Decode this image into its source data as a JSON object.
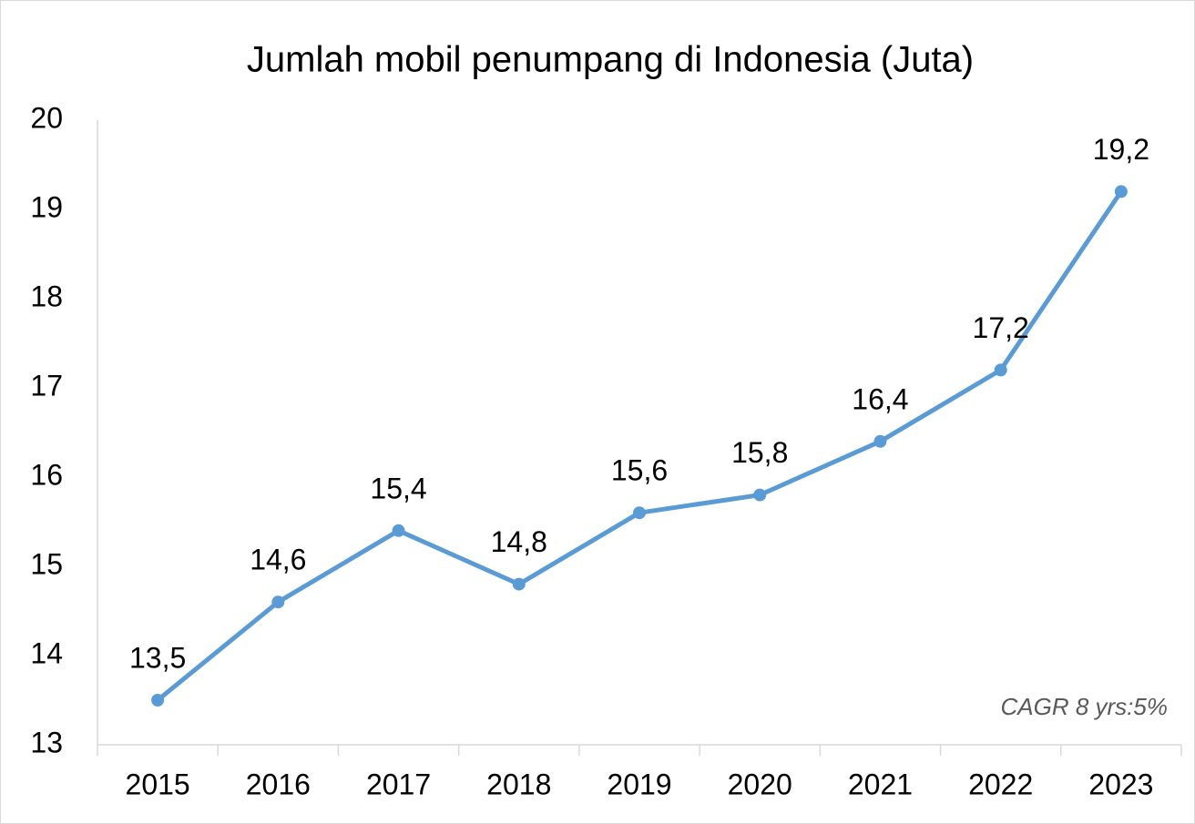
{
  "chart_data": {
    "type": "line",
    "title": "Jumlah mobil penumpang di Indonesia (Juta)",
    "categories": [
      "2015",
      "2016",
      "2017",
      "2018",
      "2019",
      "2020",
      "2021",
      "2022",
      "2023"
    ],
    "series": [
      {
        "name": "Jumlah mobil penumpang",
        "color": "#5b9bd5",
        "values": [
          13.5,
          14.6,
          15.4,
          14.8,
          15.6,
          15.8,
          16.4,
          17.2,
          19.2
        ],
        "value_labels": [
          "13,5",
          "14,6",
          "15,4",
          "14,8",
          "15,6",
          "15,8",
          "16,4",
          "17,2",
          "19,2"
        ]
      }
    ],
    "ylim": [
      13,
      20
    ],
    "yticks": [
      13,
      14,
      15,
      16,
      17,
      18,
      19,
      20
    ],
    "grid": false,
    "annotation": "CAGR 8 yrs:5%"
  }
}
